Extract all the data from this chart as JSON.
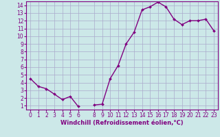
{
  "x": [
    0,
    1,
    2,
    3,
    4,
    5,
    6,
    7,
    8,
    9,
    10,
    11,
    12,
    13,
    14,
    15,
    16,
    17,
    18,
    19,
    20,
    21,
    22,
    23
  ],
  "y": [
    4.5,
    3.5,
    3.2,
    2.5,
    1.8,
    2.2,
    0.9,
    null,
    1.1,
    1.2,
    4.5,
    6.2,
    9.0,
    10.5,
    13.4,
    13.8,
    14.4,
    13.8,
    12.2,
    11.5,
    12.0,
    12.0,
    12.2,
    10.7
  ],
  "line_color": "#800080",
  "marker": "D",
  "marker_size": 2.0,
  "background_color": "#cce8e8",
  "grid_color": "#aaaacc",
  "xlabel": "Windchill (Refroidissement éolien,°C)",
  "xlim": [
    -0.5,
    23.5
  ],
  "ylim": [
    0.5,
    14.5
  ],
  "yticks": [
    1,
    2,
    3,
    4,
    5,
    6,
    7,
    8,
    9,
    10,
    11,
    12,
    13,
    14
  ],
  "xticks": [
    0,
    1,
    2,
    3,
    4,
    5,
    6,
    8,
    9,
    10,
    11,
    12,
    13,
    14,
    15,
    16,
    17,
    18,
    19,
    20,
    21,
    22,
    23
  ],
  "axis_color": "#800080",
  "tick_color": "#800080",
  "label_color": "#800080",
  "linewidth": 1.0,
  "xlabel_fontsize": 6.0,
  "tick_fontsize": 5.5
}
